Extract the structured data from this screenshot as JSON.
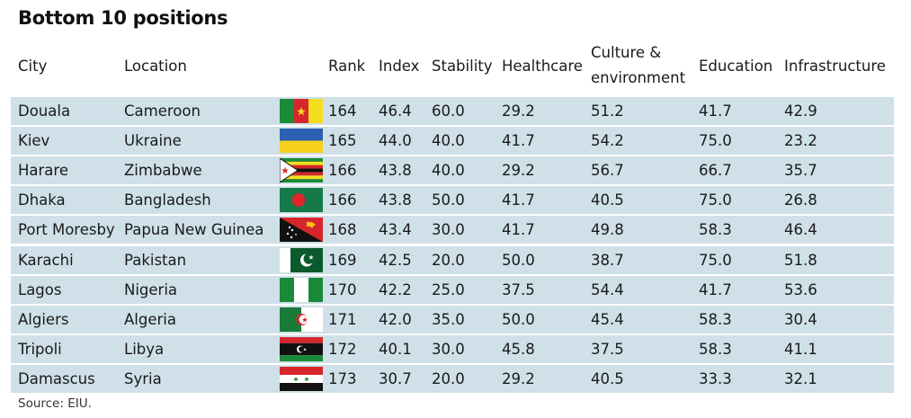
{
  "title": "Bottom 10 positions",
  "headers": {
    "city": "City",
    "location": "Location",
    "rank": "Rank",
    "index": "Index",
    "stability": "Stability",
    "healthcare": "Healthcare",
    "culture_line1": "Culture &",
    "culture_line2": "environment",
    "education": "Education",
    "infrastructure": "Infrastructure"
  },
  "rows": [
    {
      "city": "Douala",
      "location": "Cameroon",
      "flag": "cameroon",
      "rank": "164",
      "index": "46.4",
      "stability": "60.0",
      "healthcare": "29.2",
      "culture": "51.2",
      "education": "41.7",
      "infrastructure": "42.9"
    },
    {
      "city": "Kiev",
      "location": "Ukraine",
      "flag": "ukraine",
      "rank": "165",
      "index": "44.0",
      "stability": "40.0",
      "healthcare": "41.7",
      "culture": "54.2",
      "education": "75.0",
      "infrastructure": "23.2"
    },
    {
      "city": "Harare",
      "location": "Zimbabwe",
      "flag": "zimbabwe",
      "rank": "166",
      "index": "43.8",
      "stability": "40.0",
      "healthcare": "29.2",
      "culture": "56.7",
      "education": "66.7",
      "infrastructure": "35.7"
    },
    {
      "city": "Dhaka",
      "location": "Bangladesh",
      "flag": "bangladesh",
      "rank": "166",
      "index": "43.8",
      "stability": "50.0",
      "healthcare": "41.7",
      "culture": "40.5",
      "education": "75.0",
      "infrastructure": "26.8"
    },
    {
      "city": "Port Moresby",
      "location": "Papua New Guinea",
      "flag": "papua-new-guinea",
      "rank": "168",
      "index": "43.4",
      "stability": "30.0",
      "healthcare": "41.7",
      "culture": "49.8",
      "education": "58.3",
      "infrastructure": "46.4"
    },
    {
      "city": "Karachi",
      "location": "Pakistan",
      "flag": "pakistan",
      "rank": "169",
      "index": "42.5",
      "stability": "20.0",
      "healthcare": "50.0",
      "culture": "38.7",
      "education": "75.0",
      "infrastructure": "51.8"
    },
    {
      "city": "Lagos",
      "location": "Nigeria",
      "flag": "nigeria",
      "rank": "170",
      "index": "42.2",
      "stability": "25.0",
      "healthcare": "37.5",
      "culture": "54.4",
      "education": "41.7",
      "infrastructure": "53.6"
    },
    {
      "city": "Algiers",
      "location": "Algeria",
      "flag": "algeria",
      "rank": "171",
      "index": "42.0",
      "stability": "35.0",
      "healthcare": "50.0",
      "culture": "45.4",
      "education": "58.3",
      "infrastructure": "30.4"
    },
    {
      "city": "Tripoli",
      "location": "Libya",
      "flag": "libya",
      "rank": "172",
      "index": "40.1",
      "stability": "30.0",
      "healthcare": "45.8",
      "culture": "37.5",
      "education": "58.3",
      "infrastructure": "41.1"
    },
    {
      "city": "Damascus",
      "location": "Syria",
      "flag": "syria",
      "rank": "173",
      "index": "30.7",
      "stability": "20.0",
      "healthcare": "29.2",
      "culture": "40.5",
      "education": "33.3",
      "infrastructure": "32.1"
    }
  ],
  "source": "Source: EIU.",
  "colors": {
    "row_bg": "#cfe0e8"
  }
}
